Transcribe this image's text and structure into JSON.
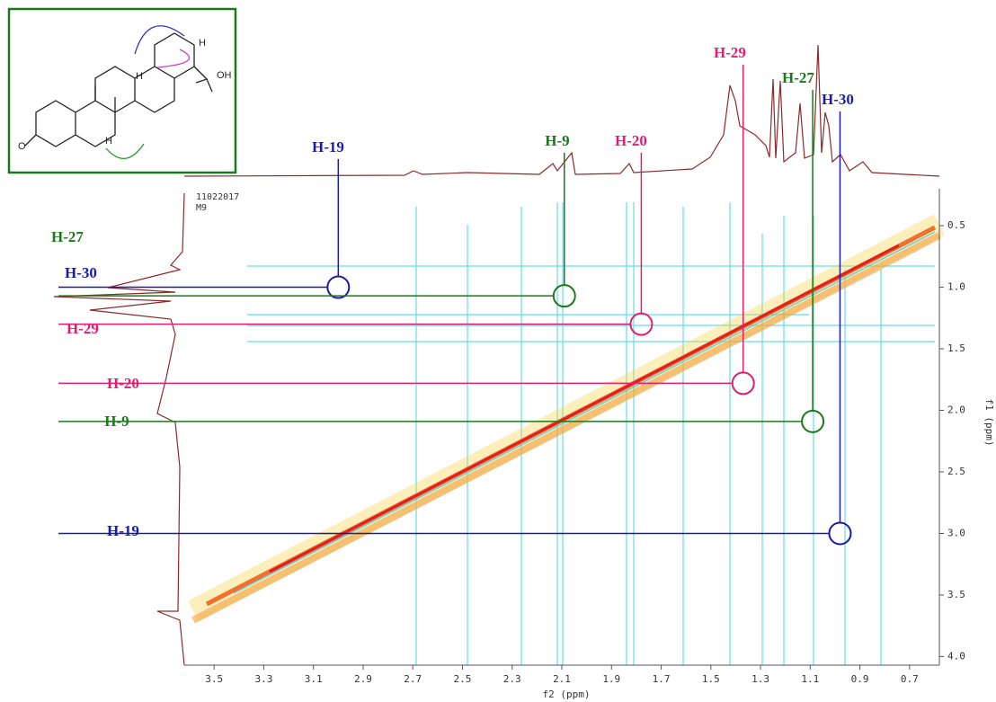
{
  "chart_data": {
    "type": "nmr2d",
    "dataset_id": "11022017",
    "sample": "M9",
    "x_label": "f2 (ppm)",
    "y_label": "f1 (ppm)",
    "xlim": [
      3.62,
      0.58
    ],
    "ylim": [
      0.2,
      4.07
    ],
    "xticks": [
      3.5,
      3.3,
      3.1,
      2.9,
      2.7,
      2.5,
      2.3,
      2.1,
      1.9,
      1.7,
      1.5,
      1.3,
      1.1,
      0.9,
      0.7
    ],
    "yticks": [
      0.5,
      {
        "value": 1,
        "label": "1.0"
      },
      1.5,
      {
        "value": 2,
        "label": "2.0"
      },
      2.5,
      {
        "value": 3,
        "label": "3.0"
      },
      3.5,
      {
        "value": 4,
        "label": "4.0"
      }
    ],
    "correlations": [
      {
        "f2": 3.0,
        "f1": 1.0,
        "top_label": "H-19",
        "left_label": "H-30",
        "color": "#1c1ca0"
      },
      {
        "f2": 2.09,
        "f1": 1.07,
        "top_label": "H-9",
        "left_label": "H-27",
        "color": "#1a7a1a"
      },
      {
        "f2": 1.78,
        "f1": 1.3,
        "top_label": "H-20",
        "left_label": "H-29",
        "color": "#e0206e"
      },
      {
        "f2": 1.37,
        "f1": 1.78,
        "top_label": "H-29",
        "left_label": "H-20",
        "color": "#e0206e"
      },
      {
        "f2": 1.09,
        "f1": 2.09,
        "top_label": "H-27",
        "left_label": "H-9",
        "color": "#1a7a1a"
      },
      {
        "f2": 0.98,
        "f1": 3.0,
        "top_label": "H-30",
        "left_label": "H-19",
        "color": "#1c1ca0"
      }
    ],
    "structure_labels": [
      "O",
      "H",
      "H",
      "H",
      "OH"
    ]
  }
}
